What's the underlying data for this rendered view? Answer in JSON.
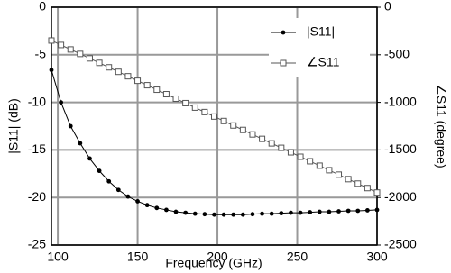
{
  "chart_data": {
    "type": "line",
    "x_label": "Frequency (GHz)",
    "y_label": "|S11| (dB)",
    "y2_label": "∠S11 (degree)",
    "x": [
      96,
      102,
      108,
      114,
      120,
      126,
      132,
      138,
      144,
      150,
      156,
      162,
      168,
      174,
      180,
      186,
      192,
      198,
      204,
      210,
      216,
      222,
      228,
      234,
      240,
      246,
      252,
      258,
      264,
      270,
      276,
      282,
      288,
      294,
      300
    ],
    "series": [
      {
        "name": "|S11|",
        "color": "#000000",
        "marker": "circle",
        "values": [
          -6.6,
          -10,
          -12.5,
          -14.3,
          -15.9,
          -17.2,
          -18.3,
          -19.2,
          -19.9,
          -20.4,
          -20.8,
          -21.1,
          -21.3,
          -21.5,
          -21.6,
          -21.7,
          -21.75,
          -21.8,
          -21.8,
          -21.8,
          -21.8,
          -21.75,
          -21.7,
          -21.7,
          -21.65,
          -21.6,
          -21.6,
          -21.55,
          -21.5,
          -21.5,
          -21.45,
          -21.4,
          -21.4,
          -21.35,
          -21.3
        ]
      },
      {
        "name": "∠S11",
        "color": "#555555",
        "marker": "square",
        "axis": "y2",
        "values": [
          -350,
          -397,
          -444,
          -491,
          -538,
          -585,
          -632,
          -679,
          -726,
          -773,
          -820,
          -867,
          -914,
          -961,
          -1008,
          -1055,
          -1102,
          -1149,
          -1196,
          -1243,
          -1290,
          -1337,
          -1384,
          -1431,
          -1478,
          -1525,
          -1572,
          -1619,
          -1666,
          -1713,
          -1760,
          -1807,
          -1854,
          -1901,
          -1948
        ]
      }
    ],
    "xlim": [
      96,
      300
    ],
    "xticks": [
      100,
      150,
      200,
      250,
      300
    ],
    "ylim": [
      -25,
      0
    ],
    "yticks": [
      0,
      -5,
      -10,
      -15,
      -20,
      -25
    ],
    "y2lim": [
      -2500,
      0
    ],
    "y2ticks": [
      0,
      -500,
      -1000,
      -1500,
      -2000,
      -2500
    ],
    "grid": true,
    "legend": "top-right"
  }
}
